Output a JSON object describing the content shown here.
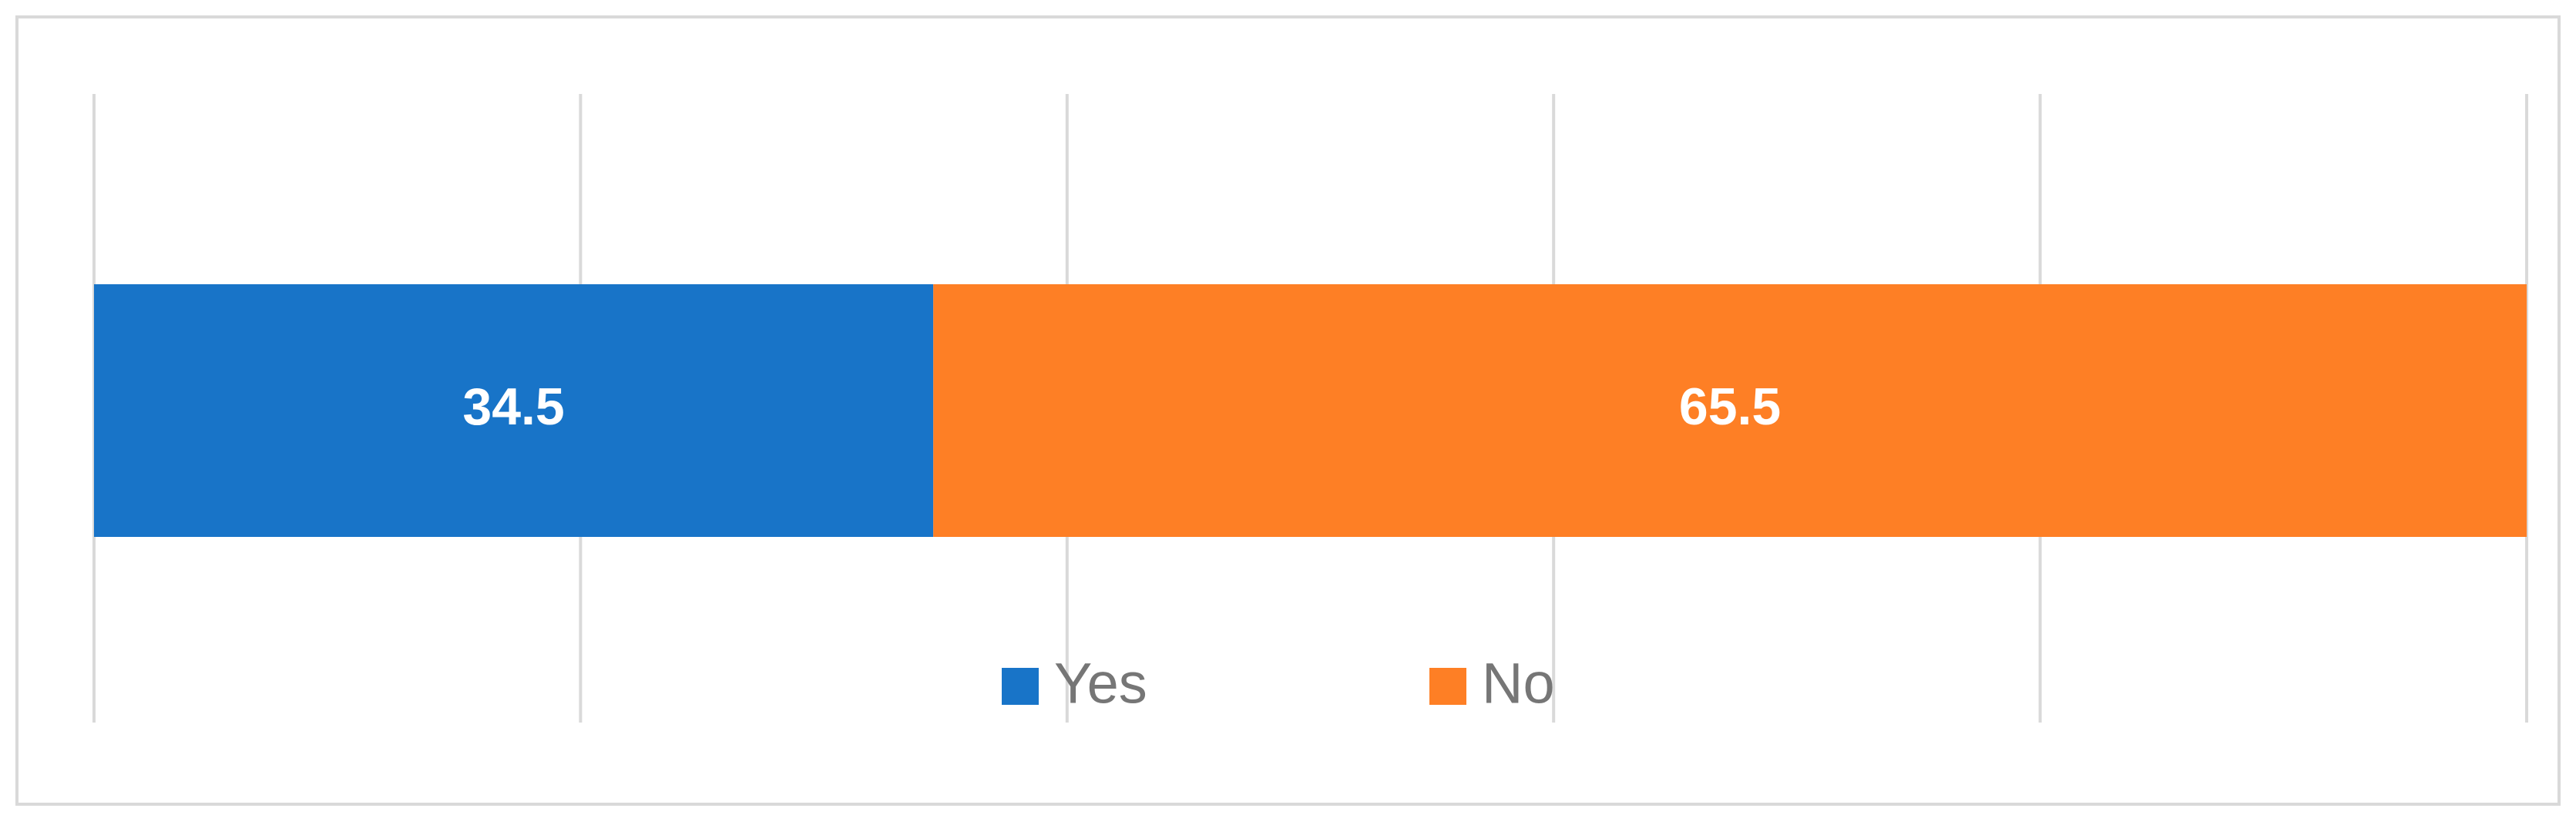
{
  "chart_data": {
    "type": "stacked_barh",
    "series": [
      {
        "name": "Yes",
        "color": "#1874c8",
        "values": [
          34.5
        ]
      },
      {
        "name": "No",
        "color": "#fe7f25",
        "values": [
          65.5
        ]
      }
    ],
    "xlim": [
      0,
      100
    ],
    "xticks": [
      0,
      20,
      40,
      60,
      80,
      100
    ],
    "grid": true,
    "legend": "bottom"
  }
}
